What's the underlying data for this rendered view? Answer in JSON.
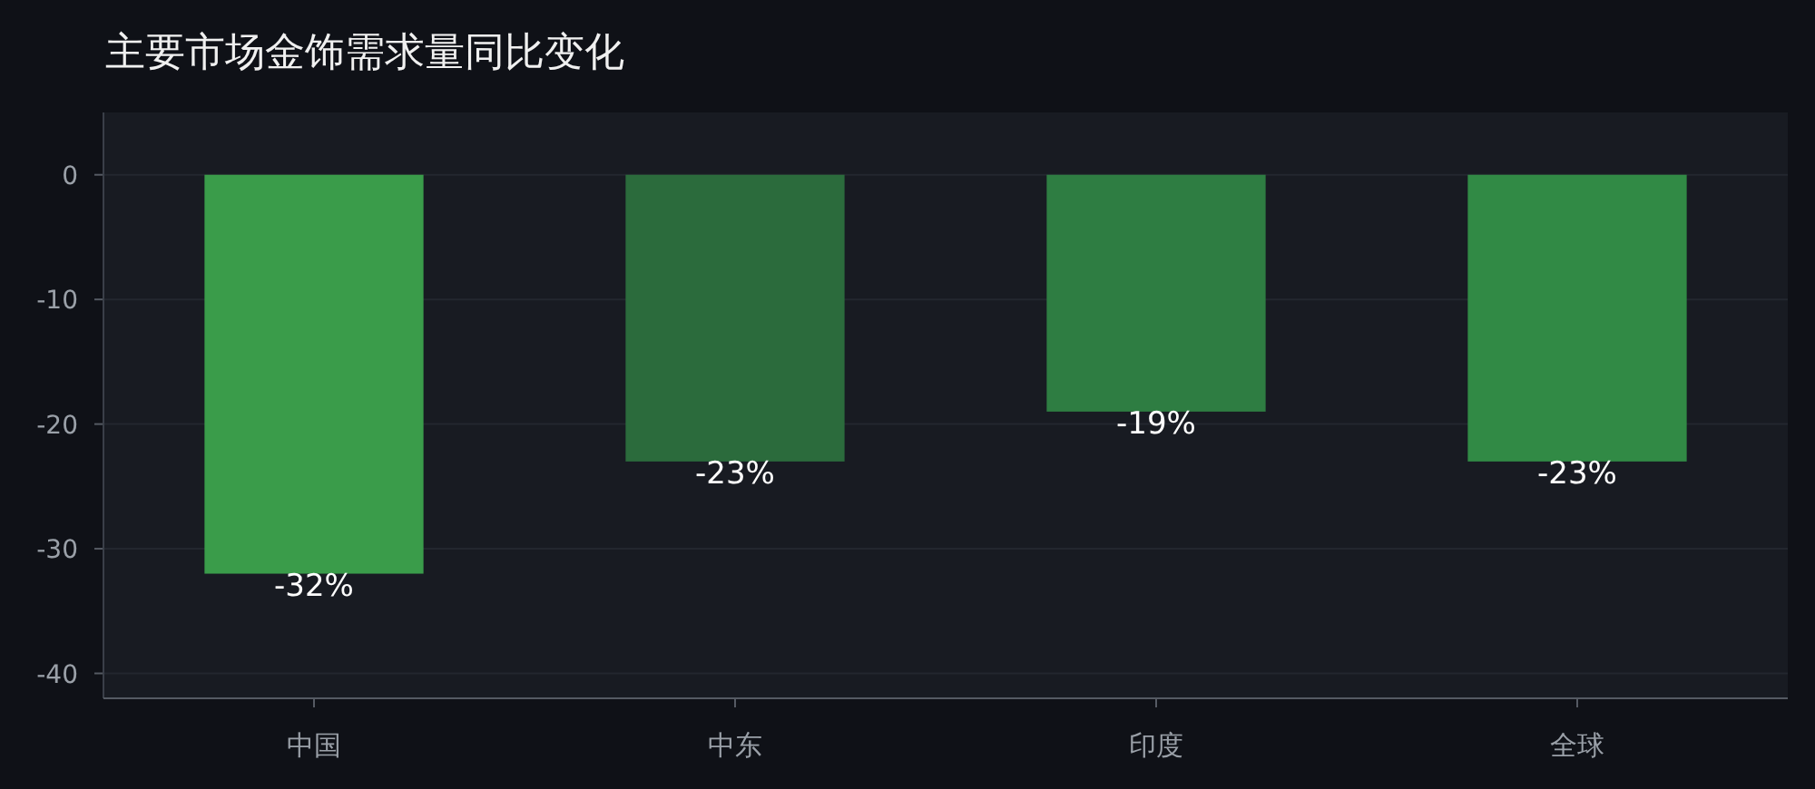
{
  "chart_data": {
    "type": "bar",
    "title": "主要市场金饰需求量同比变化",
    "categories": [
      "中国",
      "中东",
      "印度",
      "全球"
    ],
    "values": [
      -32,
      -23,
      -19,
      -23
    ],
    "colors": [
      "#3a9c4a",
      "#2b6b3c",
      "#2e7d42",
      "#318a45"
    ],
    "value_labels": [
      "-32%",
      "-23%",
      "-19%",
      "-23%"
    ],
    "ylim": [
      -42,
      5
    ],
    "yticks": [
      0,
      -10,
      -20,
      -30,
      -40
    ],
    "grid": "y"
  }
}
